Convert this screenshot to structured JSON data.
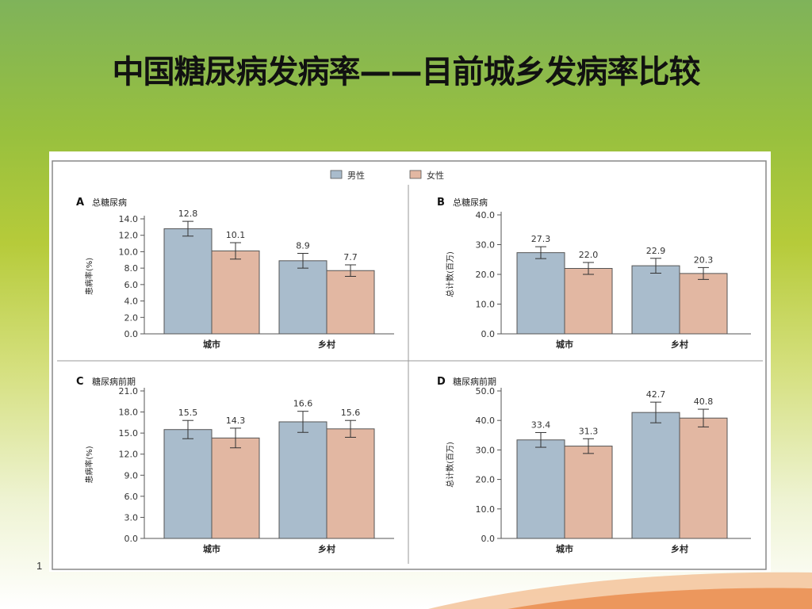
{
  "slide": {
    "title": "中国糖尿病发病率——目前城乡发病率比较",
    "page_number": "1"
  },
  "colors": {
    "male": "#a9bccc",
    "female": "#e2b7a2",
    "axis": "#555555"
  },
  "legend": [
    "男性",
    "女性"
  ],
  "chart_data": [
    {
      "type": "bar",
      "panel": "A",
      "title": "总糖尿病",
      "ylabel": "患病率(%)",
      "categories": [
        "城市",
        "乡村"
      ],
      "ylim": [
        0,
        14
      ],
      "yticks": [
        "0.0",
        "2.0",
        "4.0",
        "6.0",
        "8.0",
        "10.0",
        "12.0",
        "14.0"
      ],
      "series": [
        {
          "name": "男性",
          "values": [
            12.8,
            8.9
          ],
          "labels": [
            "12.8",
            "8.9"
          ],
          "err": [
            0.9,
            0.9
          ]
        },
        {
          "name": "女性",
          "values": [
            10.1,
            7.7
          ],
          "labels": [
            "10.1",
            "7.7"
          ],
          "err": [
            1.0,
            0.7
          ]
        }
      ]
    },
    {
      "type": "bar",
      "panel": "B",
      "title": "总糖尿病",
      "ylabel": "总计数(百万)",
      "categories": [
        "城市",
        "乡村"
      ],
      "ylim": [
        0,
        40
      ],
      "yticks": [
        "0.0",
        "10.0",
        "20.0",
        "30.0",
        "40.0"
      ],
      "series": [
        {
          "name": "男性",
          "values": [
            27.3,
            22.9
          ],
          "labels": [
            "27.3",
            "22.9"
          ],
          "err": [
            2.0,
            2.5
          ]
        },
        {
          "name": "女性",
          "values": [
            22.0,
            20.3
          ],
          "labels": [
            "22.0",
            "20.3"
          ],
          "err": [
            2.0,
            2.0
          ]
        }
      ]
    },
    {
      "type": "bar",
      "panel": "C",
      "title": "糖尿病前期",
      "ylabel": "患病率(%)",
      "categories": [
        "城市",
        "乡村"
      ],
      "ylim": [
        0,
        21
      ],
      "yticks": [
        "0.0",
        "3.0",
        "6.0",
        "9.0",
        "12.0",
        "15.0",
        "18.0",
        "21.0"
      ],
      "series": [
        {
          "name": "男性",
          "values": [
            15.5,
            16.6
          ],
          "labels": [
            "15.5",
            "16.6"
          ],
          "err": [
            1.3,
            1.5
          ]
        },
        {
          "name": "女性",
          "values": [
            14.3,
            15.6
          ],
          "labels": [
            "14.3",
            "15.6"
          ],
          "err": [
            1.4,
            1.2
          ]
        }
      ]
    },
    {
      "type": "bar",
      "panel": "D",
      "title": "糖尿病前期",
      "ylabel": "总计数(百万)",
      "categories": [
        "城市",
        "乡村"
      ],
      "ylim": [
        0,
        50
      ],
      "yticks": [
        "0.0",
        "10.0",
        "20.0",
        "30.0",
        "40.0",
        "50.0"
      ],
      "series": [
        {
          "name": "男性",
          "values": [
            33.4,
            42.7
          ],
          "labels": [
            "33.4",
            "42.7"
          ],
          "err": [
            2.5,
            3.5
          ]
        },
        {
          "name": "女性",
          "values": [
            31.3,
            40.8
          ],
          "labels": [
            "31.3",
            "40.8"
          ],
          "err": [
            2.5,
            3.0
          ]
        }
      ]
    }
  ]
}
